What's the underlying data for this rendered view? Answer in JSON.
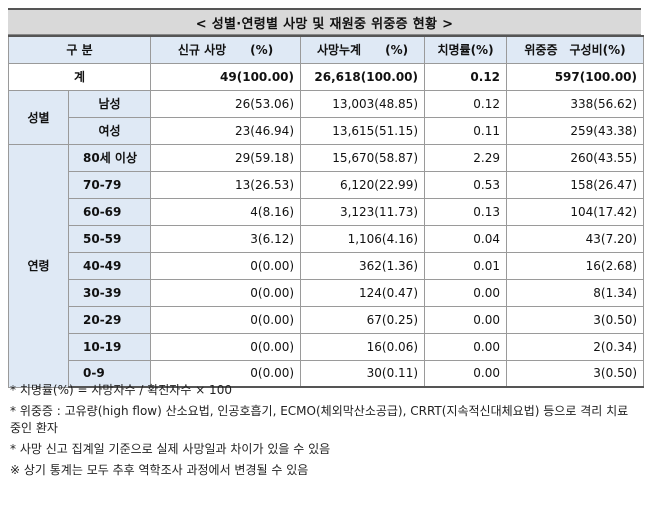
{
  "title": "< 성별·연령별 사망 및 재원중 위중증 현황 >",
  "headers": {
    "category": "구 분",
    "new_deaths": "신규 사망　　(%)",
    "cumulative_deaths": "사망누계　　(%)",
    "fatality_rate": "치명률(%)",
    "severe": "위중증　구성비(%)"
  },
  "total": {
    "label": "계",
    "new_deaths": "49(100.00)",
    "cumulative_deaths": "26,618(100.00)",
    "fatality_rate": "0.12",
    "severe": "597(100.00)"
  },
  "gender_group": {
    "label": "성별",
    "rows": [
      {
        "label": "남성",
        "new_deaths": "26(53.06)",
        "cumulative_deaths": "13,003(48.85)",
        "fatality_rate": "0.12",
        "severe": "338(56.62)"
      },
      {
        "label": "여성",
        "new_deaths": "23(46.94)",
        "cumulative_deaths": "13,615(51.15)",
        "fatality_rate": "0.11",
        "severe": "259(43.38)"
      }
    ]
  },
  "age_group": {
    "label": "연령",
    "rows": [
      {
        "label": "80세 이상",
        "new_deaths": "29(59.18)",
        "cumulative_deaths": "15,670(58.87)",
        "fatality_rate": "2.29",
        "severe": "260(43.55)"
      },
      {
        "label": "70-79",
        "new_deaths": "13(26.53)",
        "cumulative_deaths": "6,120(22.99)",
        "fatality_rate": "0.53",
        "severe": "158(26.47)"
      },
      {
        "label": "60-69",
        "new_deaths": "4(8.16)",
        "cumulative_deaths": "3,123(11.73)",
        "fatality_rate": "0.13",
        "severe": "104(17.42)"
      },
      {
        "label": "50-59",
        "new_deaths": "3(6.12)",
        "cumulative_deaths": "1,106(4.16)",
        "fatality_rate": "0.04",
        "severe": "43(7.20)"
      },
      {
        "label": "40-49",
        "new_deaths": "0(0.00)",
        "cumulative_deaths": "362(1.36)",
        "fatality_rate": "0.01",
        "severe": "16(2.68)"
      },
      {
        "label": "30-39",
        "new_deaths": "0(0.00)",
        "cumulative_deaths": "124(0.47)",
        "fatality_rate": "0.00",
        "severe": "8(1.34)"
      },
      {
        "label": "20-29",
        "new_deaths": "0(0.00)",
        "cumulative_deaths": "67(0.25)",
        "fatality_rate": "0.00",
        "severe": "3(0.50)"
      },
      {
        "label": "10-19",
        "new_deaths": "0(0.00)",
        "cumulative_deaths": "16(0.06)",
        "fatality_rate": "0.00",
        "severe": "2(0.34)"
      },
      {
        "label": "0-9",
        "new_deaths": "0(0.00)",
        "cumulative_deaths": "30(0.11)",
        "fatality_rate": "0.00",
        "severe": "3(0.50)"
      }
    ]
  },
  "notes": [
    "* 치명률(%) = 사망자수 / 확진자수 × 100",
    "* 위중증 : 고유량(high flow) 산소요법, 인공호흡기, ECMO(체외막산소공급), CRRT(지속적신대체요법) 등으로 격리 치료 중인 환자",
    "* 사망 신고 집계일 기준으로 실제 사망일과 차이가 있을 수 있음",
    "※ 상기 통계는 모두 추후 역학조사 과정에서 변경될 수 있음"
  ]
}
